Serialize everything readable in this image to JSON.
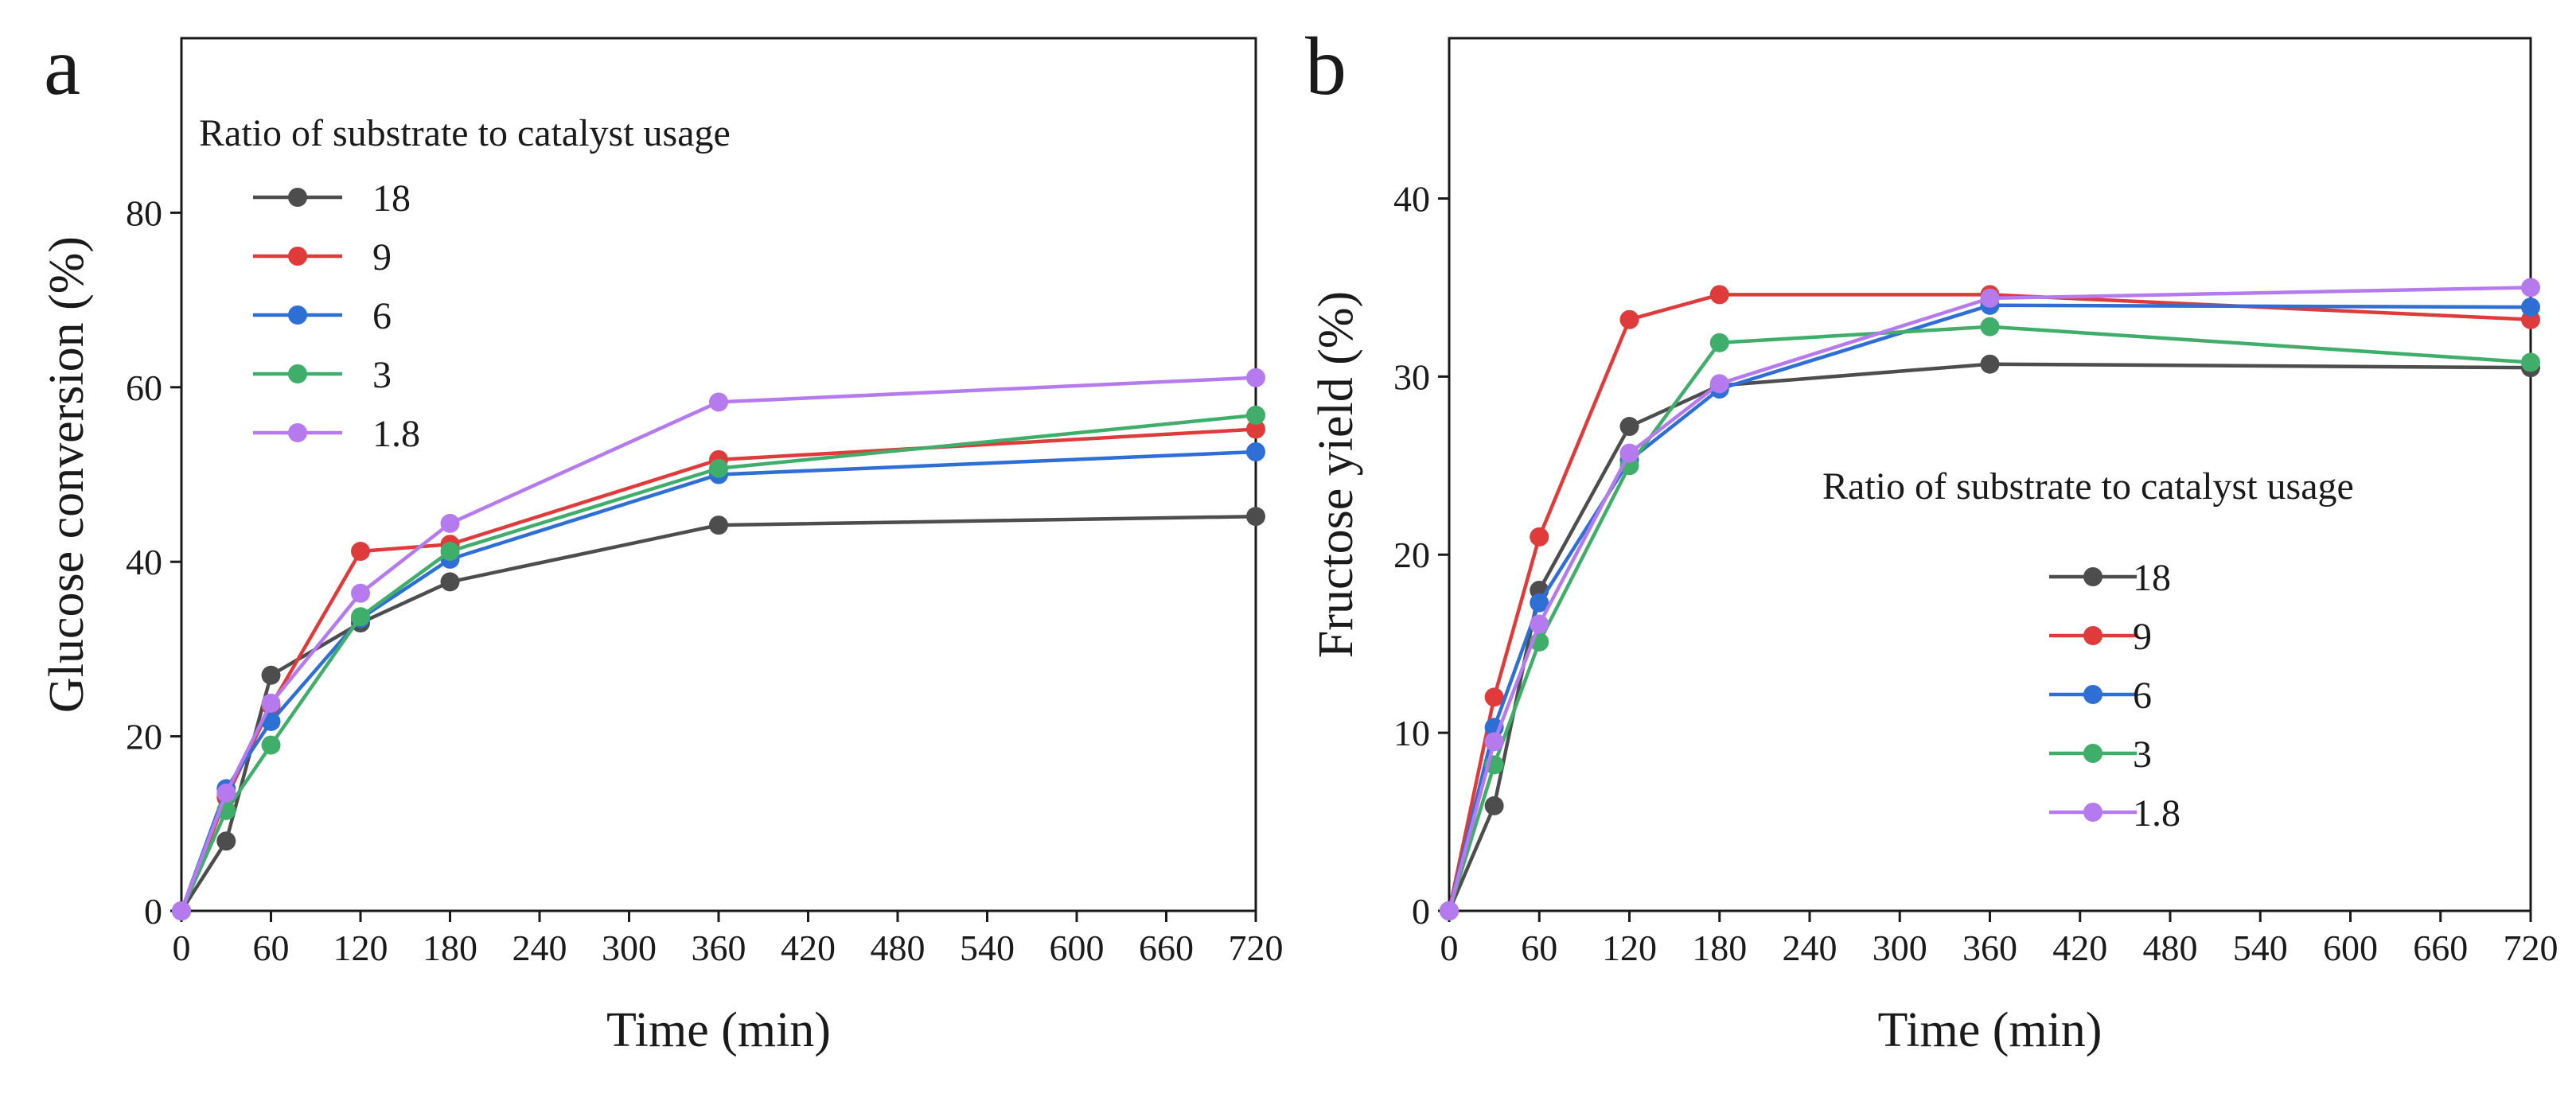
{
  "chart_data": [
    {
      "type": "line",
      "panel_label": "a",
      "xlabel": "Time (min)",
      "ylabel": "Glucose conversion (%)",
      "xlim": [
        0,
        720
      ],
      "ylim": [
        0,
        100
      ],
      "xticks": [
        0,
        60,
        120,
        180,
        240,
        300,
        360,
        420,
        480,
        540,
        600,
        660,
        720
      ],
      "yticks": [
        0,
        20,
        40,
        60,
        80
      ],
      "legend_title": "Ratio of substrate to catalyst usage",
      "legend_position": "top-left",
      "x": [
        0,
        30,
        60,
        120,
        180,
        360,
        720
      ],
      "series": [
        {
          "name": "18",
          "color": "#4d4d4d",
          "values": [
            0,
            8,
            27,
            33,
            37.7,
            44.2,
            45.2
          ]
        },
        {
          "name": "9",
          "color": "#e03b3b",
          "values": [
            0,
            13,
            23.5,
            41.2,
            42,
            51.7,
            55.2
          ]
        },
        {
          "name": "6",
          "color": "#2e6fd6",
          "values": [
            0,
            14,
            21.7,
            33.5,
            40.3,
            50,
            52.6
          ]
        },
        {
          "name": "3",
          "color": "#3fae6a",
          "values": [
            0,
            11.5,
            19,
            33.7,
            41.2,
            50.7,
            56.8
          ]
        },
        {
          "name": "1.8",
          "color": "#b57bee",
          "values": [
            0,
            13.5,
            23.8,
            36.4,
            44.4,
            58.3,
            61.1
          ]
        }
      ]
    },
    {
      "type": "line",
      "panel_label": "b",
      "xlabel": "Time (min)",
      "ylabel": "Fructose yield  (%)",
      "xlim": [
        0,
        720
      ],
      "ylim": [
        0,
        49
      ],
      "xticks": [
        0,
        60,
        120,
        180,
        240,
        300,
        360,
        420,
        480,
        540,
        600,
        660,
        720
      ],
      "yticks": [
        0,
        10,
        20,
        30,
        40
      ],
      "legend_title": "Ratio of substrate to catalyst usage",
      "legend_position": "center-right",
      "x": [
        0,
        30,
        60,
        120,
        180,
        360,
        720
      ],
      "series": [
        {
          "name": "18",
          "color": "#4d4d4d",
          "values": [
            0,
            5.9,
            18,
            27.2,
            29.5,
            30.7,
            30.5
          ]
        },
        {
          "name": "9",
          "color": "#e03b3b",
          "values": [
            0,
            12,
            21,
            33.2,
            34.6,
            34.6,
            33.2
          ]
        },
        {
          "name": "6",
          "color": "#2e6fd6",
          "values": [
            0,
            10.3,
            17.3,
            25.3,
            29.3,
            34,
            33.9
          ]
        },
        {
          "name": "3",
          "color": "#3fae6a",
          "values": [
            0,
            8.2,
            15.1,
            25,
            31.9,
            32.8,
            30.8
          ]
        },
        {
          "name": "1.8",
          "color": "#b57bee",
          "values": [
            0,
            9.5,
            16.1,
            25.7,
            29.6,
            34.4,
            35
          ]
        }
      ]
    }
  ]
}
